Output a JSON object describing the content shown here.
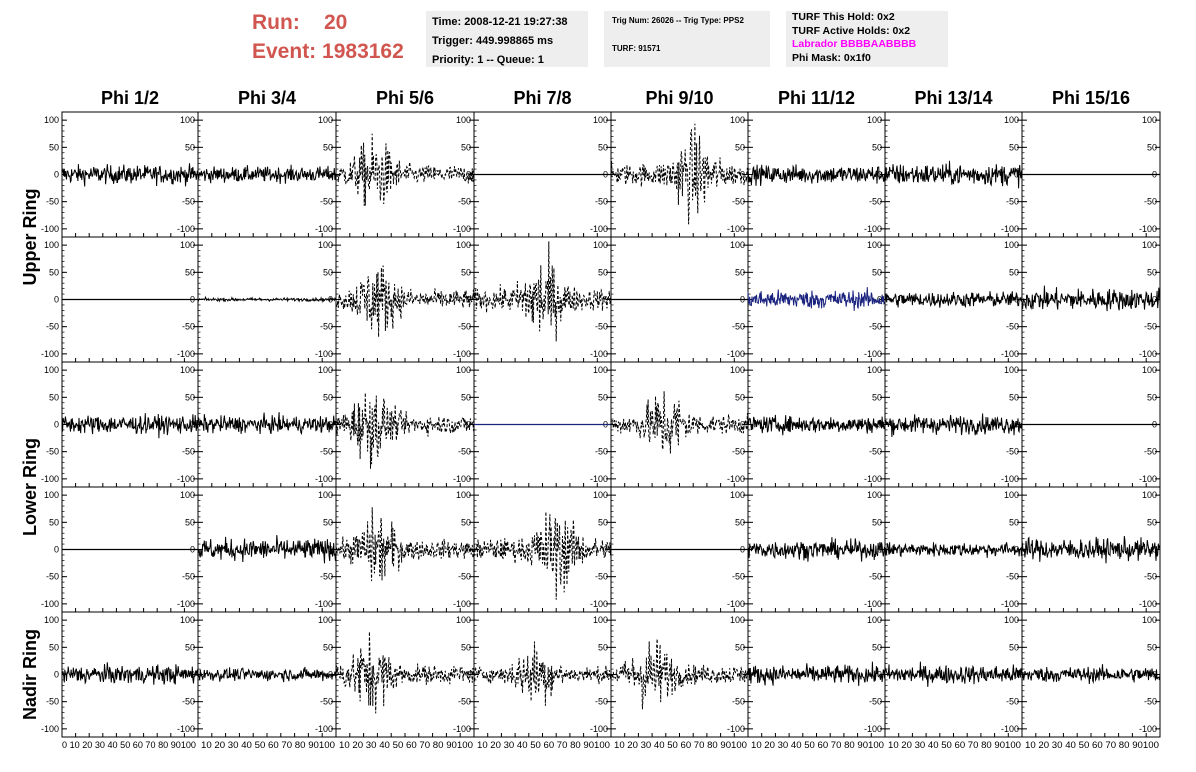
{
  "header": {
    "run_label": "Run:",
    "run_value": "20",
    "event_label": "Event:",
    "event_value": "1983162",
    "time": "Time: 2008-12-21 19:27:38",
    "trigger": "Trigger: 449.998865 ms",
    "priority": "Priority: 1 -- Queue: 1",
    "trig_num": "Trig Num: 26026 -- Trig Type: PPS2",
    "turf": "TURF: 91571",
    "turf_hold": "TURF This Hold: 0x2",
    "turf_active": "TURF Active Holds: 0x2",
    "labrador": "Labrador BBBBAABBBB",
    "phi_mask": "Phi Mask: 0x1f0",
    "colors": {
      "run_text": "#d0564f",
      "labrador": "#ff00ff",
      "info_bg": "#eeeeee"
    }
  },
  "chart_data": {
    "type": "line",
    "layout": "grid of waveform panels, 5 rows x 8 columns",
    "column_titles": [
      "Phi 1/2",
      "Phi 3/4",
      "Phi 5/6",
      "Phi 7/8",
      "Phi 9/10",
      "Phi 11/12",
      "Phi 13/14",
      "Phi 15/16"
    ],
    "ring_labels": [
      {
        "text": "Upper Ring",
        "rows": [
          0,
          1
        ]
      },
      {
        "text": "Lower Ring",
        "rows": [
          2,
          3
        ]
      },
      {
        "text": "Nadir Ring",
        "rows": [
          4
        ]
      }
    ],
    "xlim": [
      0,
      100
    ],
    "ylim": [
      -115,
      115
    ],
    "y_ticks": [
      100,
      50,
      0,
      -50,
      -100
    ],
    "x_ticks": [
      0,
      10,
      20,
      30,
      40,
      50,
      60,
      70,
      80,
      90,
      100
    ],
    "x_tick_text": [
      "0 10 20 30 40 50 60 70 80 90100",
      "10 20 30 40 50 60 70 80 90100",
      "10 20 30 40 50 60 70 80 90100",
      "10 20 30 40 50 60 70 80 90100",
      "10 20 30 40 50 60 70 80 90100",
      "10 20 30 40 50 60 70 80 90100",
      "10 20 30 40 50 60 70 80 90100",
      "10 20 30 40 50 60 70 80 90100"
    ],
    "panels": [
      [
        {
          "style": "solid",
          "color": "#000000",
          "amp": 12,
          "burst": 0
        },
        {
          "style": "solid",
          "color": "#000000",
          "amp": 10,
          "burst": 0
        },
        {
          "style": "dashed",
          "color": "#000000",
          "amp": 12,
          "burst": 28
        },
        {
          "style": "flat",
          "color": "#000000",
          "amp": 0,
          "burst": 0
        },
        {
          "style": "dashed",
          "color": "#000000",
          "amp": 14,
          "burst": 60
        },
        {
          "style": "solid",
          "color": "#000000",
          "amp": 12,
          "burst": 0
        },
        {
          "style": "solid",
          "color": "#000000",
          "amp": 14,
          "burst": 0
        },
        {
          "style": "flat",
          "color": "#000000",
          "amp": 0,
          "burst": 0
        }
      ],
      [
        {
          "style": "flat",
          "color": "#000000",
          "amp": 0,
          "burst": 0
        },
        {
          "style": "solid",
          "color": "#000000",
          "amp": 2,
          "burst": 0
        },
        {
          "style": "dashed",
          "color": "#000000",
          "amp": 12,
          "burst": 30
        },
        {
          "style": "dashed",
          "color": "#000000",
          "amp": 14,
          "burst": 50
        },
        {
          "style": "flat",
          "color": "#000000",
          "amp": 0,
          "burst": 0
        },
        {
          "style": "solid",
          "color": "#1a237e",
          "amp": 12,
          "burst": 0
        },
        {
          "style": "solid",
          "color": "#000000",
          "amp": 10,
          "burst": 0
        },
        {
          "style": "solid",
          "color": "#000000",
          "amp": 14,
          "burst": 0
        }
      ],
      [
        {
          "style": "solid",
          "color": "#000000",
          "amp": 12,
          "burst": 0
        },
        {
          "style": "solid",
          "color": "#000000",
          "amp": 11,
          "burst": 0
        },
        {
          "style": "dashed",
          "color": "#000000",
          "amp": 12,
          "burst": 25
        },
        {
          "style": "flat",
          "color": "#1a237e",
          "amp": 0,
          "burst": 0
        },
        {
          "style": "dashed",
          "color": "#000000",
          "amp": 12,
          "burst": 40
        },
        {
          "style": "solid",
          "color": "#000000",
          "amp": 11,
          "burst": 0
        },
        {
          "style": "solid",
          "color": "#000000",
          "amp": 12,
          "burst": 0
        },
        {
          "style": "flat",
          "color": "#000000",
          "amp": 0,
          "burst": 0
        }
      ],
      [
        {
          "style": "flat",
          "color": "#000000",
          "amp": 0,
          "burst": 0
        },
        {
          "style": "solid",
          "color": "#000000",
          "amp": 14,
          "burst": 0
        },
        {
          "style": "dashed",
          "color": "#000000",
          "amp": 12,
          "burst": 30
        },
        {
          "style": "dashed",
          "color": "#000000",
          "amp": 14,
          "burst": 60
        },
        {
          "style": "flat",
          "color": "#000000",
          "amp": 0,
          "burst": 0
        },
        {
          "style": "solid",
          "color": "#000000",
          "amp": 12,
          "burst": 0
        },
        {
          "style": "solid",
          "color": "#000000",
          "amp": 9,
          "burst": 0
        },
        {
          "style": "solid",
          "color": "#000000",
          "amp": 14,
          "burst": 0
        }
      ],
      [
        {
          "style": "solid",
          "color": "#000000",
          "amp": 12,
          "burst": 0
        },
        {
          "style": "solid",
          "color": "#000000",
          "amp": 8,
          "burst": 0
        },
        {
          "style": "dashed",
          "color": "#000000",
          "amp": 12,
          "burst": 25
        },
        {
          "style": "dashed",
          "color": "#000000",
          "amp": 10,
          "burst": 45
        },
        {
          "style": "dashed",
          "color": "#000000",
          "amp": 12,
          "burst": 30
        },
        {
          "style": "solid",
          "color": "#000000",
          "amp": 12,
          "burst": 0
        },
        {
          "style": "solid",
          "color": "#000000",
          "amp": 12,
          "burst": 0
        },
        {
          "style": "solid",
          "color": "#000000",
          "amp": 10,
          "burst": 0
        }
      ]
    ]
  }
}
